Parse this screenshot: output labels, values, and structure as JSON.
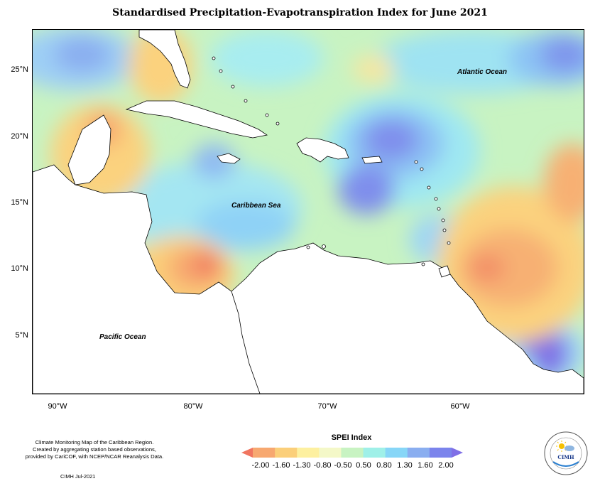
{
  "title": "Standardised Precipitation-Evapotranspiration Index for June 2021",
  "map": {
    "labels": {
      "atlantic": "Atlantic Ocean",
      "caribbean": "Caribbean Sea",
      "pacific": "Pacific Ocean"
    },
    "latitudes": [
      "25°N",
      "20°N",
      "15°N",
      "10°N",
      "5°N"
    ],
    "longitudes": [
      "90°W",
      "80°W",
      "70°W",
      "60°W"
    ]
  },
  "legend": {
    "title": "SPEI Index",
    "ticks": [
      "-2.00",
      "-1.60",
      "-1.30",
      "-0.80",
      "-0.50",
      "0.50",
      "0.80",
      "1.30",
      "1.60",
      "2.00"
    ],
    "colors": [
      "#f07560",
      "#f7a870",
      "#fbcf7a",
      "#fdf0a0",
      "#f4f8c8",
      "#c8f3c2",
      "#9ff0e8",
      "#87d6f7",
      "#8aaef0",
      "#7b84ec",
      "#7f6fe6"
    ]
  },
  "footer": {
    "note_line1": "Climate Monitoring Map of the Caribbean Region.",
    "note_line2": "Created by aggregating station based observations,",
    "note_line3": "provided by CariCOF, with NCEP/NCAR Reanalysis Data.",
    "date": "CIMH Jul-2021"
  },
  "logo": {
    "text": "CIMH",
    "ring_text": "Caribbean Institute for Meteorology and Hydrology"
  }
}
